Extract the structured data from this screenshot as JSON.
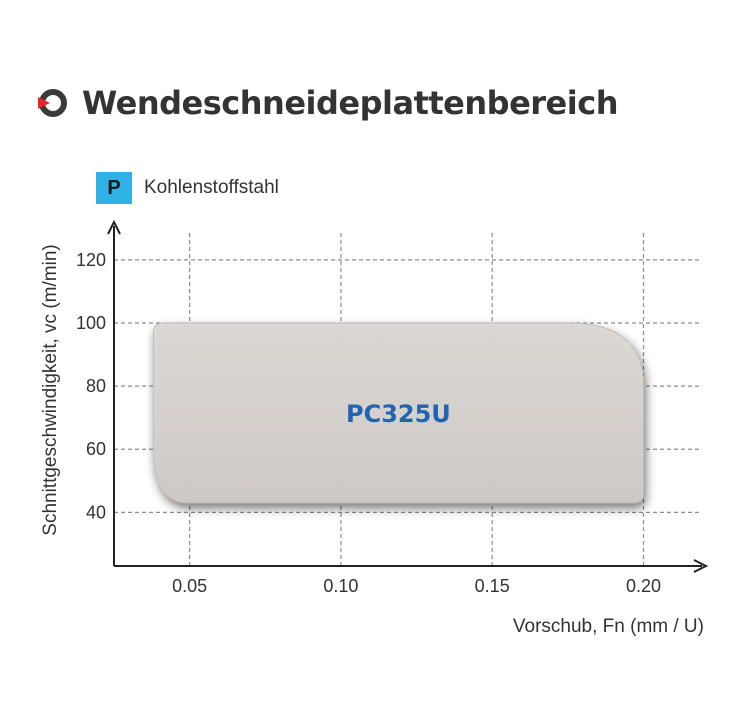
{
  "header": {
    "title": "Wendeschneideplattenbereich",
    "icon": "ring-arrow-icon",
    "accent_color": "#e8262b"
  },
  "material": {
    "badge": "P",
    "label": "Kohlenstoffstahl",
    "badge_color": "#2fb1e6"
  },
  "chart_data": {
    "type": "area",
    "title": "",
    "xlabel": "Vorschub, Fn (mm / U)",
    "ylabel": "Schnittgeschwindigkeit, vc (m/min)",
    "x_ticks": [
      0.05,
      0.1,
      0.15,
      0.2
    ],
    "x_tick_labels": [
      "0.05",
      "0.10",
      "0.15",
      "0.20"
    ],
    "y_ticks": [
      40,
      60,
      80,
      100,
      120
    ],
    "y_tick_labels": [
      "40",
      "60",
      "80",
      "100",
      "120"
    ],
    "xlim": [
      0.025,
      0.22
    ],
    "ylim": [
      23,
      132
    ],
    "grid": true,
    "regions": [
      {
        "name": "PC325U",
        "x_range": [
          0.038,
          0.2
        ],
        "y_range": [
          43,
          100
        ],
        "fill_color": "#d6d2cf",
        "label_color": "#2264b0"
      }
    ]
  }
}
